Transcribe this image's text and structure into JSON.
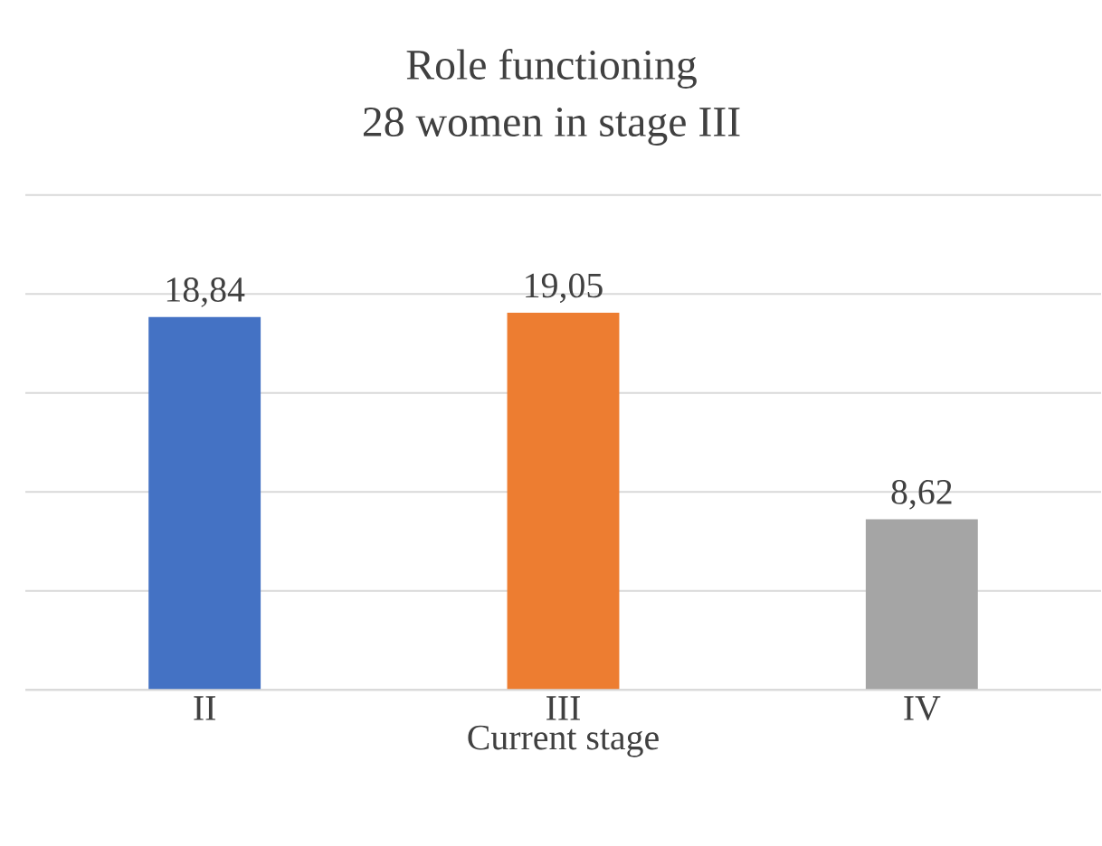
{
  "chart_data": {
    "type": "bar",
    "title": "Role functioning",
    "subtitle": "28 women in stage III",
    "xlabel": "Current stage",
    "categories": [
      "II",
      "III",
      "IV"
    ],
    "values": [
      18.84,
      19.05,
      8.62
    ],
    "colors": [
      "#4472c4",
      "#ed7d31",
      "#a5a5a5"
    ],
    "value_labels": [
      "18,84",
      "19,05",
      "8,62"
    ],
    "ylim": [
      0,
      25
    ],
    "yticks": [
      {
        "value": 0,
        "label": null
      },
      {
        "value": 5,
        "label": null
      },
      {
        "value": 10,
        "label": null
      },
      {
        "value": 15,
        "label": null
      },
      {
        "value": 20,
        "label": null
      },
      {
        "value": 25,
        "label": null
      }
    ],
    "grid": "y"
  }
}
